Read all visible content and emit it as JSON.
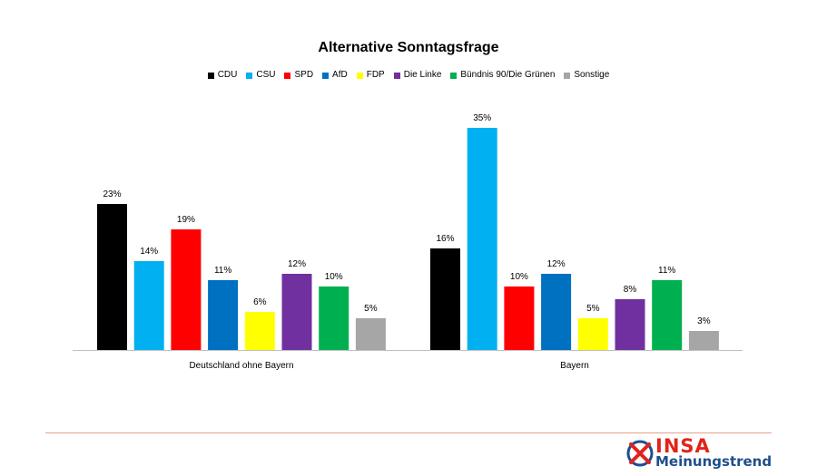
{
  "chart_data": {
    "type": "bar",
    "title": "Alternative Sonntagsfrage",
    "categories": [
      "Deutschland ohne Bayern",
      "Bayern"
    ],
    "series": [
      {
        "name": "CDU",
        "color": "#000000",
        "values": [
          23,
          16
        ]
      },
      {
        "name": "CSU",
        "color": "#00b0f0",
        "values": [
          14,
          35
        ]
      },
      {
        "name": "SPD",
        "color": "#ff0000",
        "values": [
          19,
          10
        ]
      },
      {
        "name": "AfD",
        "color": "#0070c0",
        "values": [
          11,
          12
        ]
      },
      {
        "name": "FDP",
        "color": "#ffff00",
        "values": [
          6,
          5
        ]
      },
      {
        "name": "Die Linke",
        "color": "#7030a0",
        "values": [
          12,
          8
        ]
      },
      {
        "name": "Bündnis 90/Die Grünen",
        "color": "#00b050",
        "values": [
          10,
          11
        ]
      },
      {
        "name": "Sonstige",
        "color": "#a6a6a6",
        "values": [
          5,
          3
        ]
      }
    ],
    "value_suffix": "%",
    "ylim": [
      0,
      35
    ],
    "grid": false,
    "legend_position": "top"
  },
  "branding": {
    "name": "INSA",
    "subtitle": "Meinungstrend",
    "accent_color": "#e2231a",
    "secondary_color": "#1f4e8c",
    "rule_color": "#e8a08a"
  }
}
